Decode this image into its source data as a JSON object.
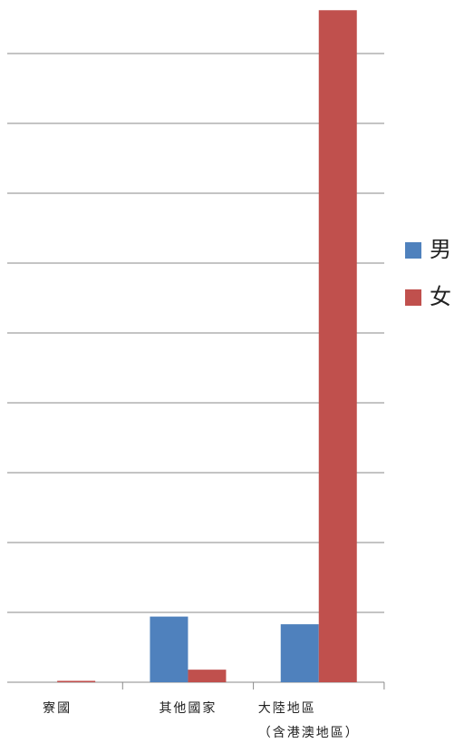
{
  "chart_data": {
    "type": "bar",
    "categories": [
      "寮國",
      "其他國家",
      [
        "大陸地區",
        "（含港澳地區）"
      ]
    ],
    "series": [
      {
        "name": "男",
        "color": "#4f81bd",
        "values": [
          0,
          0.94,
          0.83
        ]
      },
      {
        "name": "女",
        "color": "#c0504d",
        "values": [
          0.02,
          0.18,
          9.62
        ]
      }
    ],
    "ylim": [
      0,
      9.65
    ],
    "yticks": [
      0,
      1,
      2,
      3,
      4,
      5,
      6,
      7,
      8,
      9
    ],
    "grid": true,
    "legend": "right"
  }
}
